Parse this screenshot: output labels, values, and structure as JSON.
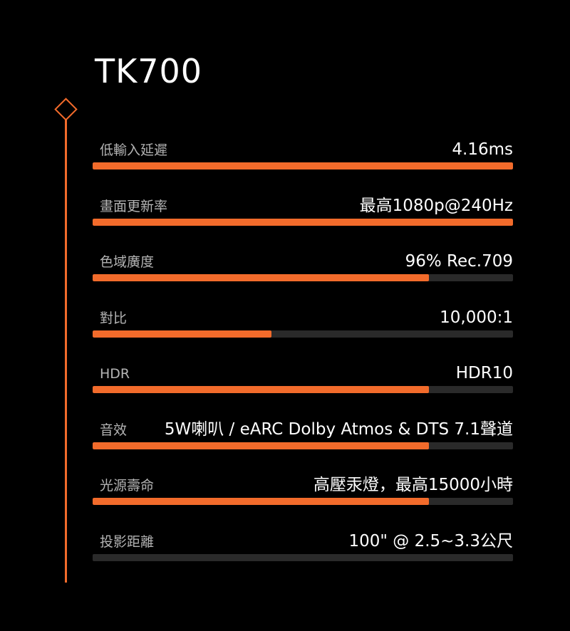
{
  "title": "TK700",
  "accent_color": "#f26b2b",
  "track_color": "#2a2a2a",
  "specs": [
    {
      "label": "低輸入延遲",
      "value": "4.16ms",
      "level": 1.0
    },
    {
      "label": "畫面更新率",
      "value": "最高1080p@240Hz",
      "level": 1.0
    },
    {
      "label": "色域廣度",
      "value": "96% Rec.709",
      "level": 0.8
    },
    {
      "label": "對比",
      "value": "10,000:1",
      "level": 0.425
    },
    {
      "label": "HDR",
      "value": "HDR10",
      "level": 0.8
    },
    {
      "label": "音效",
      "value": "5W喇叭 / eARC Dolby Atmos & DTS 7.1聲道",
      "level": 0.8
    },
    {
      "label": "光源壽命",
      "value": "高壓汞燈，最高15000小時",
      "level": 0.8
    },
    {
      "label": "投影距離",
      "value": "100\" @ 2.5~3.3公尺",
      "level": 0.0
    }
  ]
}
